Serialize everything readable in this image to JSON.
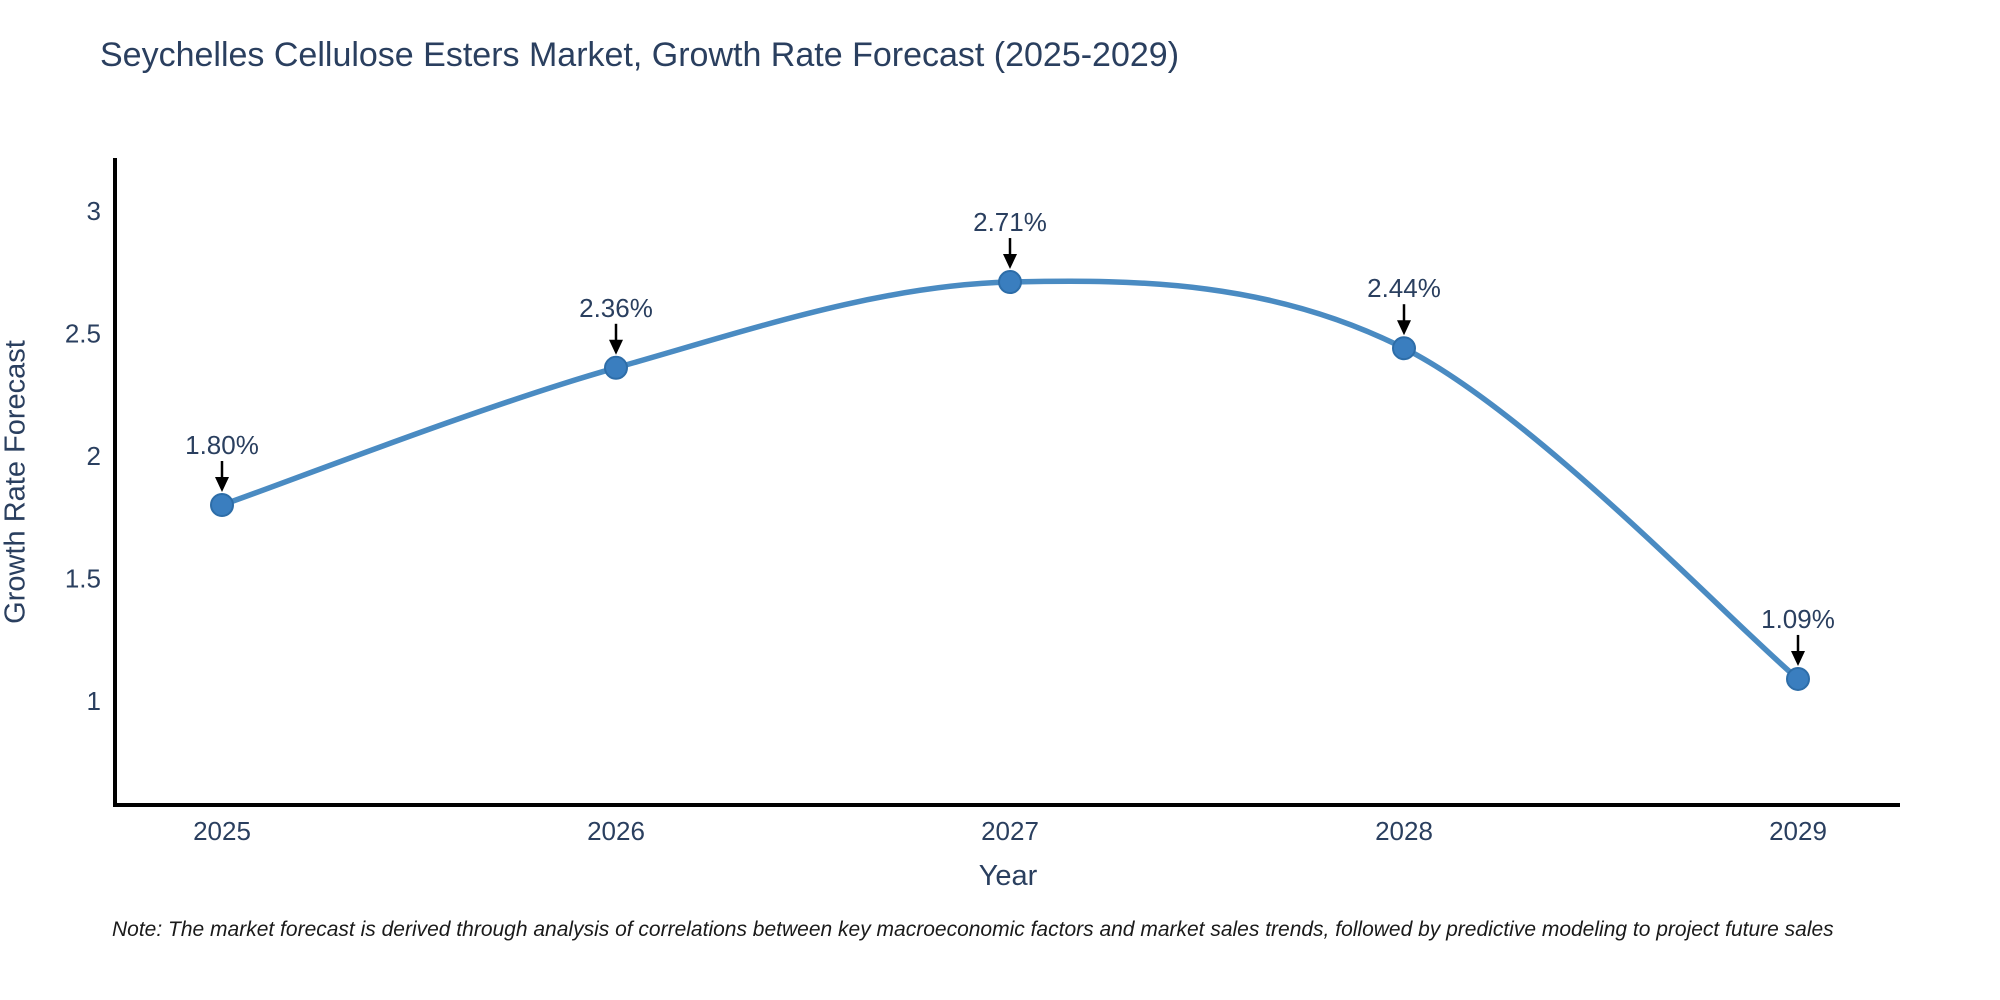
{
  "title": "Seychelles Cellulose Esters Market, Growth Rate Forecast (2025-2029)",
  "note": "Note: The market forecast is derived through analysis of correlations between key macroeconomic factors and market sales trends, followed by predictive modeling to project future sales",
  "chart_data": {
    "type": "line",
    "line_shape": "spline",
    "title": "Seychelles Cellulose Esters Market, Growth Rate Forecast (2025-2029)",
    "xlabel": "Year",
    "ylabel": "Growth Rate Forecast",
    "categories": [
      "2025",
      "2026",
      "2027",
      "2028",
      "2029"
    ],
    "values": [
      1.8,
      2.36,
      2.71,
      2.44,
      1.09
    ],
    "point_labels": [
      "1.80%",
      "2.36%",
      "2.71%",
      "2.44%",
      "1.09%"
    ],
    "ytick_values": [
      1,
      1.5,
      2,
      2.5,
      3
    ],
    "ytick_labels": [
      "1",
      "1.5",
      "2",
      "2.5",
      "3"
    ],
    "ylim": [
      0.58,
      3.21
    ],
    "grid": false,
    "legend": "none",
    "markers": true,
    "annotations_have_arrows": true,
    "colors": {
      "line": "#4a8bc2",
      "marker_fill": "#3a7ebf",
      "marker_edge": "#2d6da8",
      "axis_line": "#000000",
      "tick_text": "#2a3f5f",
      "title_text": "#2a3f5f",
      "annotation_text": "#2a3f5f",
      "annotation_arrow": "#000000",
      "note_text": "#1a1a1a",
      "background": "#ffffff"
    }
  }
}
